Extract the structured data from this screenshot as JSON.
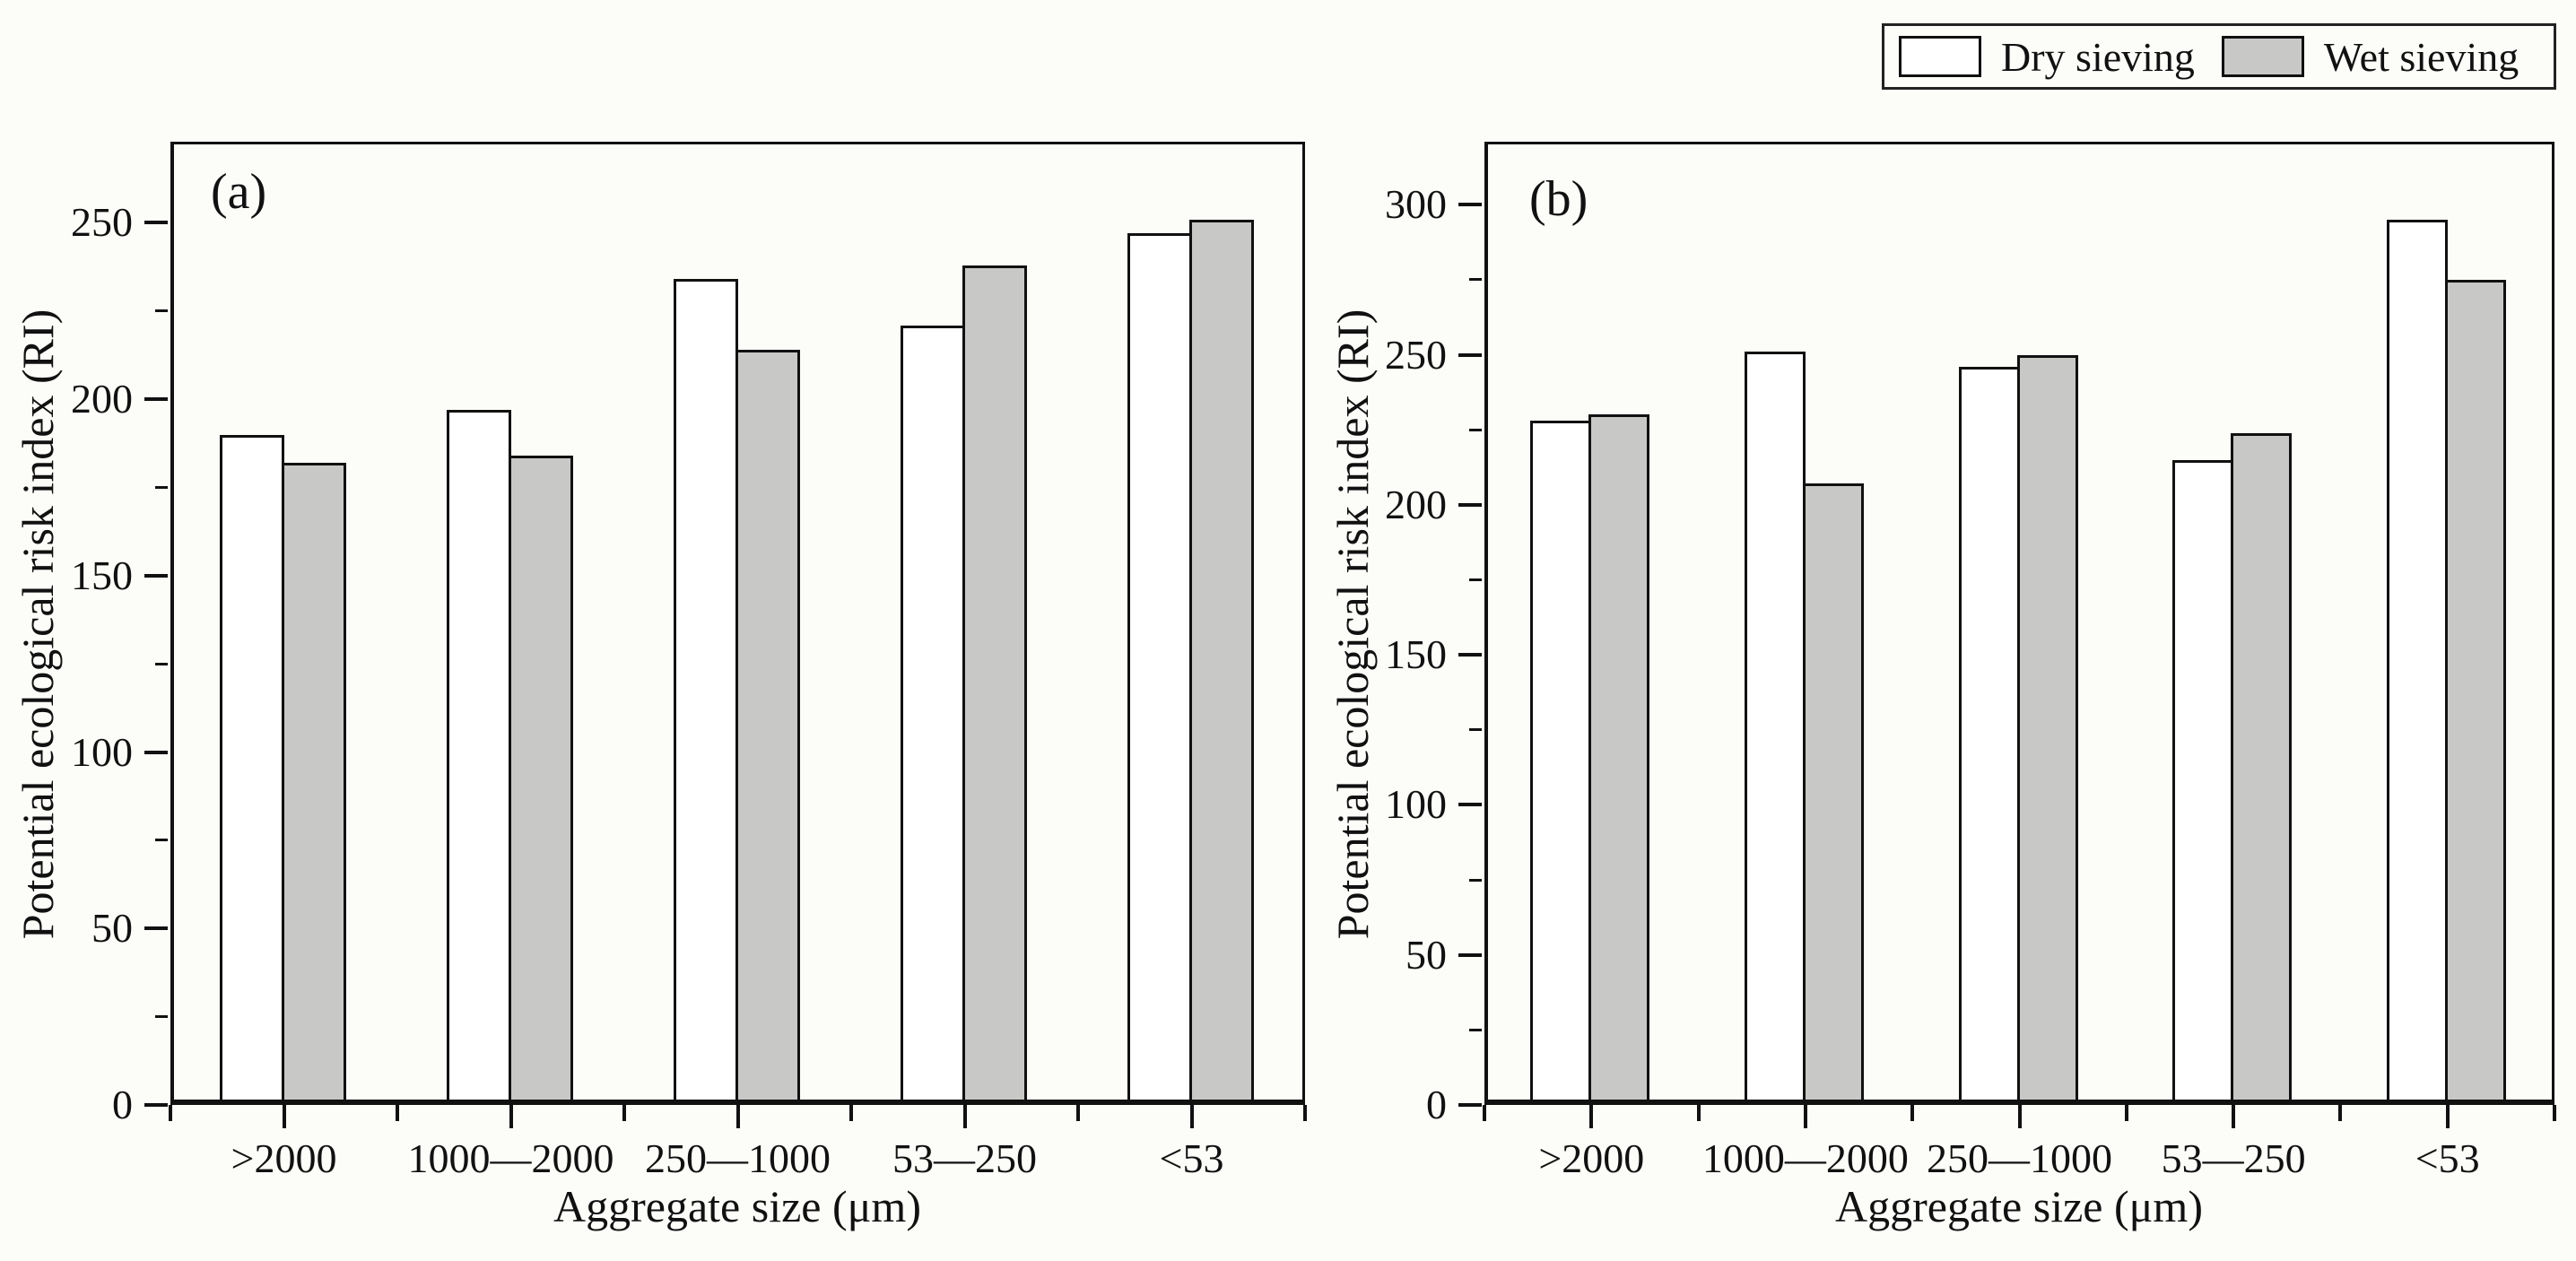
{
  "figure": {
    "background": "#fcfcf9",
    "text_color": "#111111",
    "bar_border_color": "#111111"
  },
  "legend": {
    "items": [
      {
        "label": "Dry sieving",
        "fill": "#ffffff"
      },
      {
        "label": "Wet sieving",
        "fill": "#c8c8c6"
      }
    ],
    "position": "top-right"
  },
  "chart_data": [
    {
      "type": "bar",
      "panel": "(a)",
      "categories": [
        ">2000",
        "1000—2000",
        "250—1000",
        "53—250",
        "<53"
      ],
      "series": [
        {
          "name": "Dry sieving",
          "fill": "#ffffff",
          "values": [
            190,
            197,
            234,
            221,
            247
          ]
        },
        {
          "name": "Wet sieving",
          "fill": "#c8c8c6",
          "values": [
            182,
            184,
            214,
            238,
            251
          ]
        }
      ],
      "xlabel": "Aggregate size (μm)",
      "ylabel": "Potential ecological risk index (RI)",
      "ylim": [
        0,
        273
      ],
      "y_major_ticks": [
        0,
        50,
        100,
        150,
        200,
        250
      ],
      "y_minor_step": 25,
      "grid": false,
      "legend_position": "shared figure top-right"
    },
    {
      "type": "bar",
      "panel": "(b)",
      "categories": [
        ">2000",
        "1000—2000",
        "250—1000",
        "53—250",
        "<53"
      ],
      "series": [
        {
          "name": "Dry sieving",
          "fill": "#ffffff",
          "values": [
            228,
            251,
            246,
            215,
            295
          ]
        },
        {
          "name": "Wet sieving",
          "fill": "#c8c8c6",
          "values": [
            230,
            207,
            250,
            224,
            275
          ]
        }
      ],
      "xlabel": "Aggregate size (μm)",
      "ylabel": "Potential ecological risk index (RI)",
      "ylim": [
        0,
        321
      ],
      "y_major_ticks": [
        0,
        50,
        100,
        150,
        200,
        250,
        300
      ],
      "y_minor_step": 25,
      "grid": false,
      "legend_position": "shared figure top-right"
    }
  ]
}
